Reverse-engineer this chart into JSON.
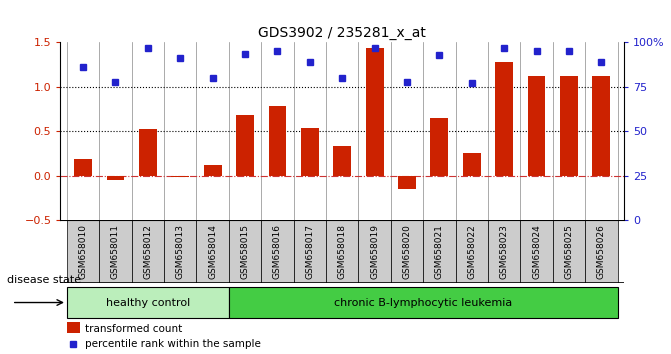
{
  "title": "GDS3902 / 235281_x_at",
  "samples": [
    "GSM658010",
    "GSM658011",
    "GSM658012",
    "GSM658013",
    "GSM658014",
    "GSM658015",
    "GSM658016",
    "GSM658017",
    "GSM658018",
    "GSM658019",
    "GSM658020",
    "GSM658021",
    "GSM658022",
    "GSM658023",
    "GSM658024",
    "GSM658025",
    "GSM658026"
  ],
  "bar_values": [
    0.19,
    -0.05,
    0.52,
    -0.02,
    0.12,
    0.68,
    0.79,
    0.54,
    0.33,
    1.44,
    -0.15,
    0.65,
    0.25,
    1.28,
    1.12,
    1.12,
    1.12
  ],
  "dot_values": [
    1.22,
    1.05,
    1.44,
    1.32,
    1.1,
    1.37,
    1.4,
    1.28,
    1.1,
    1.44,
    1.06,
    1.36,
    1.04,
    1.44,
    1.4,
    1.4,
    1.28
  ],
  "bar_color": "#cc2200",
  "dot_color": "#2222cc",
  "num_healthy": 5,
  "healthy_label": "healthy control",
  "disease_label": "chronic B-lymphocytic leukemia",
  "healthy_color": "#bbeebb",
  "disease_color": "#44cc44",
  "ylim_left": [
    -0.5,
    1.5
  ],
  "ylim_right": [
    0,
    100
  ],
  "yticks_left": [
    -0.5,
    0.0,
    0.5,
    1.0,
    1.5
  ],
  "yticks_right": [
    0,
    25,
    50,
    75,
    100
  ],
  "ytick_right_labels": [
    "0",
    "25",
    "50",
    "75",
    "100%"
  ],
  "hlines": [
    0.0,
    0.5,
    1.0
  ],
  "hline_styles": [
    "dashdot",
    "dotted",
    "dotted"
  ],
  "hline_colors": [
    "#cc3333",
    "#000000",
    "#000000"
  ],
  "disease_state_label": "disease state",
  "legend_bar": "transformed count",
  "legend_dot": "percentile rank within the sample",
  "bg_color": "#ffffff",
  "tick_bg_color": "#cccccc",
  "title_fontsize": 10,
  "bar_width": 0.55
}
